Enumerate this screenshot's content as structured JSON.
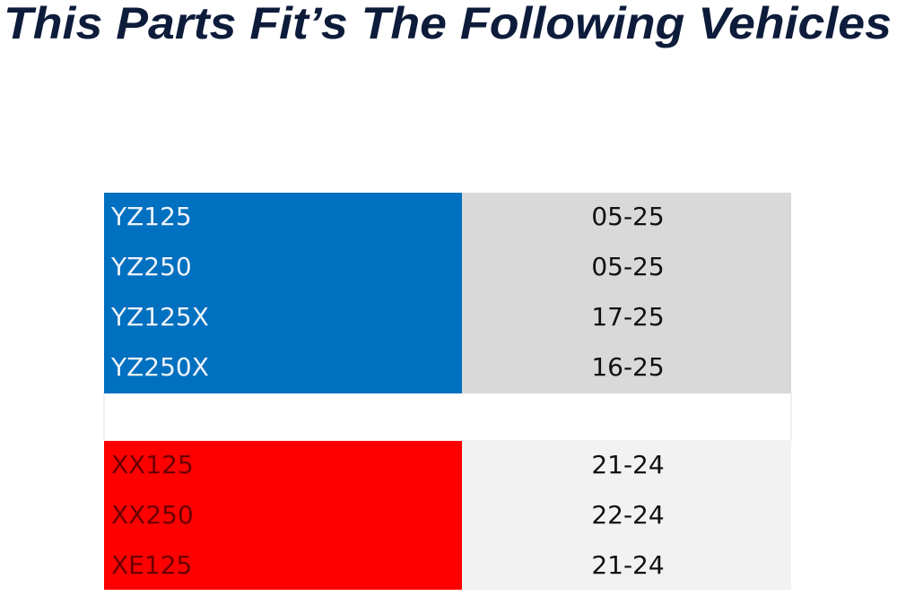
{
  "title": "This Parts Fit’s The Following Vehicles",
  "table": {
    "groups": [
      {
        "rows": [
          [
            "YZ125",
            "05-25"
          ],
          [
            "YZ250",
            "05-25"
          ],
          [
            "YZ125X",
            "17-25"
          ],
          [
            "YZ250X",
            "16-25"
          ]
        ]
      },
      {
        "rows": [
          [
            "XX125",
            "21-24"
          ],
          [
            "XX250",
            "22-24"
          ],
          [
            "XE125",
            "21-24"
          ]
        ]
      }
    ]
  }
}
